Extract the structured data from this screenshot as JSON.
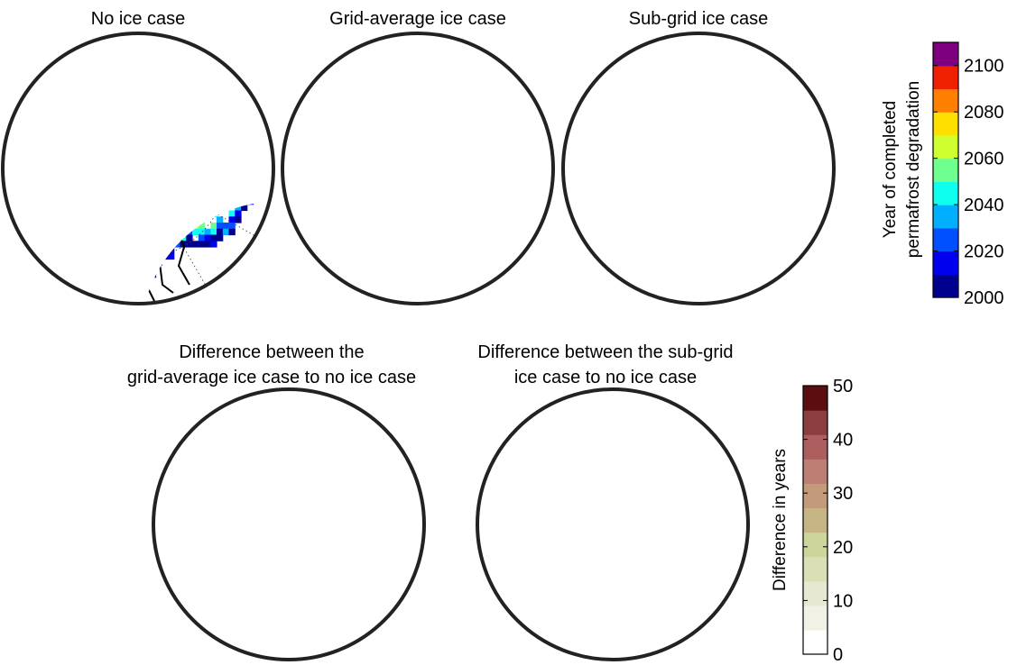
{
  "panels": [
    {
      "title_lines": [
        "No ice case"
      ],
      "kind": "year",
      "variant": 0
    },
    {
      "title_lines": [
        "Grid-average ice case"
      ],
      "kind": "year",
      "variant": 1
    },
    {
      "title_lines": [
        "Sub-grid ice case"
      ],
      "kind": "year",
      "variant": 2
    },
    {
      "title_lines": [
        "Difference between the",
        "grid-average ice case to no ice case"
      ],
      "kind": "diff",
      "variant": 0
    },
    {
      "title_lines": [
        "Difference between the sub-grid",
        "ice case to no ice case"
      ],
      "kind": "diff",
      "variant": 1
    }
  ],
  "colorbar_year": {
    "label_lines": [
      "Year of completed",
      "permafrost degradation"
    ],
    "min": 2000,
    "max": 2110,
    "ticks": [
      "2000",
      "2020",
      "2040",
      "2060",
      "2080",
      "2100"
    ],
    "colors": [
      "#00008f",
      "#0000ef",
      "#0050ff",
      "#00afff",
      "#0fffef",
      "#6fff8f",
      "#cfff2f",
      "#ffdf00",
      "#ff8000",
      "#ef2000",
      "#7f007f"
    ]
  },
  "colorbar_diff": {
    "label": "Difference in years",
    "min": 0,
    "max": 50,
    "ticks": [
      "0",
      "10",
      "20",
      "30",
      "40",
      "50"
    ],
    "colors": [
      "#ffffff",
      "#f1f1e6",
      "#e6e8d2",
      "#dadfb6",
      "#cdd59a",
      "#c5b585",
      "#c39a7a",
      "#bd7f73",
      "#ad5e5e",
      "#8c3e3e",
      "#5c0d0d"
    ]
  }
}
